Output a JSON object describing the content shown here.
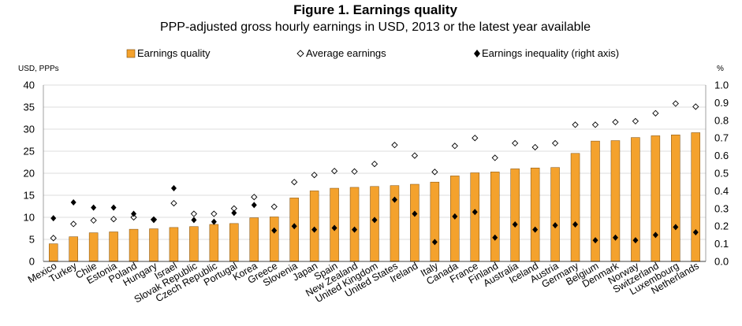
{
  "chart_data": {
    "type": "bar",
    "title": "Figure 1. Earnings quality",
    "subtitle": "PPP-adjusted gross hourly earnings in USD, 2013 or the latest year available",
    "left_axis_unit": "USD, PPPs",
    "right_axis_unit": "%",
    "left_ylim": [
      0,
      40
    ],
    "right_ylim": [
      0,
      1.0
    ],
    "left_ticks": [
      "0",
      "5",
      "10",
      "15",
      "20",
      "25",
      "30",
      "35",
      "40"
    ],
    "right_ticks": [
      "0.0",
      "0.1",
      "0.2",
      "0.3",
      "0.4",
      "0.5",
      "0.6",
      "0.7",
      "0.8",
      "0.9",
      "1.0"
    ],
    "legend": {
      "earnings_quality": "Earnings quality",
      "average_earnings": "Average earnings",
      "earnings_inequality": "Earnings inequality (right axis)"
    },
    "categories": [
      "Mexico",
      "Turkey",
      "Chile",
      "Estonia",
      "Poland",
      "Hungary",
      "Israel",
      "Slovak Republic",
      "Czech Republic",
      "Portugal",
      "Korea",
      "Greece",
      "Slovenia",
      "Japan",
      "Spain",
      "New Zealand",
      "United Kingdom",
      "United States",
      "Ireland",
      "Italy",
      "Canada",
      "France",
      "Finland",
      "Australia",
      "Iceland",
      "Austria",
      "Germany",
      "Belgium",
      "Denmark",
      "Norway",
      "Switzerland",
      "Luxembourg",
      "Netherlands"
    ],
    "series": [
      {
        "name": "Earnings quality",
        "axis": "left",
        "marker": "bar",
        "values": [
          4.0,
          5.6,
          6.5,
          6.7,
          7.3,
          7.4,
          7.7,
          7.9,
          8.4,
          8.6,
          9.9,
          10.1,
          14.4,
          16.0,
          16.6,
          16.8,
          17.0,
          17.2,
          17.5,
          18.0,
          19.4,
          20.1,
          20.3,
          21.0,
          21.2,
          21.3,
          24.5,
          27.3,
          27.4,
          28.1,
          28.5,
          28.7,
          29.2
        ]
      },
      {
        "name": "Average earnings",
        "axis": "left",
        "marker": "open-diamond",
        "values": [
          5.3,
          8.5,
          9.3,
          9.6,
          10.0,
          9.5,
          13.2,
          10.8,
          10.8,
          12.0,
          14.6,
          12.4,
          18.0,
          19.6,
          20.5,
          20.4,
          22.1,
          26.4,
          24.0,
          20.3,
          26.2,
          28.0,
          23.5,
          26.8,
          25.9,
          26.8,
          31.0,
          31.0,
          31.6,
          31.8,
          33.6,
          35.8,
          35.1
        ]
      },
      {
        "name": "Earnings inequality (right axis)",
        "axis": "right",
        "marker": "filled-diamond",
        "values": [
          0.245,
          0.335,
          0.305,
          0.305,
          0.27,
          0.235,
          0.415,
          0.235,
          0.225,
          0.275,
          0.32,
          0.175,
          0.2,
          0.18,
          0.19,
          0.18,
          0.235,
          0.35,
          0.27,
          0.11,
          0.255,
          0.28,
          0.135,
          0.21,
          0.18,
          0.205,
          0.21,
          0.12,
          0.135,
          0.12,
          0.15,
          0.195,
          0.165
        ]
      }
    ],
    "colors": {
      "bar": "#f4a22d",
      "bar_edge": "#7a4a0a",
      "marker": "#000000"
    }
  }
}
